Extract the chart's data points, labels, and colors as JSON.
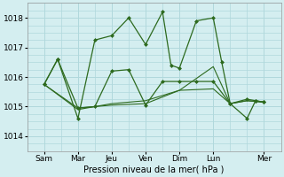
{
  "background_color": "#d4eef0",
  "grid_color": "#b0d8dc",
  "line_color": "#2d6a1e",
  "ylim": [
    1013.5,
    1018.5
  ],
  "ylabel_ticks": [
    1014,
    1015,
    1016,
    1017,
    1018
  ],
  "xlabel": "Pression niveau de la mer( hPa )",
  "day_labels": [
    "Sam",
    "Mar",
    "Jeu",
    "",
    "Ven",
    "",
    "Dim",
    "",
    "Lun",
    "",
    "",
    "Mer"
  ],
  "day_tick_pos": [
    0.5,
    1.5,
    2.5,
    3.0,
    3.5,
    4.0,
    4.5,
    5.0,
    5.5,
    6.0,
    6.5,
    7.0
  ],
  "xlim": [
    0,
    7.5
  ],
  "series1_x": [
    0.5,
    0.9,
    1.5,
    2.0,
    2.5,
    3.0,
    3.5,
    4.0,
    4.25,
    4.5,
    5.0,
    5.5,
    5.75,
    6.0,
    6.5,
    6.75,
    7.0
  ],
  "series1_y": [
    1015.75,
    1016.6,
    1014.6,
    1017.25,
    1017.4,
    1018.0,
    1017.1,
    1018.2,
    1016.4,
    1016.3,
    1017.9,
    1018.0,
    1016.5,
    1015.1,
    1014.6,
    1015.2,
    1015.15
  ],
  "series2_x": [
    0.5,
    0.9,
    1.5,
    2.0,
    2.5,
    3.0,
    3.5,
    4.0,
    4.5,
    5.0,
    5.5,
    6.0,
    6.5,
    6.75,
    7.0
  ],
  "series2_y": [
    1015.75,
    1016.6,
    1014.95,
    1015.0,
    1016.2,
    1016.25,
    1015.05,
    1015.85,
    1015.85,
    1015.85,
    1015.85,
    1015.1,
    1015.25,
    1015.2,
    1015.15
  ],
  "series3_x": [
    0.5,
    1.5,
    2.5,
    3.5,
    4.5,
    5.5,
    6.0,
    6.5,
    7.0
  ],
  "series3_y": [
    1015.75,
    1014.95,
    1015.05,
    1015.1,
    1015.55,
    1015.6,
    1015.1,
    1015.2,
    1015.15
  ],
  "series4_x": [
    0.5,
    1.5,
    2.5,
    3.5,
    4.5,
    5.5,
    6.0,
    6.5,
    7.0
  ],
  "series4_y": [
    1015.75,
    1014.9,
    1015.1,
    1015.2,
    1015.55,
    1016.35,
    1015.1,
    1015.2,
    1015.15
  ],
  "vtick_positions": [
    0.5,
    1.5,
    2.5,
    3.5,
    4.5,
    5.5,
    6.5,
    7.5
  ]
}
